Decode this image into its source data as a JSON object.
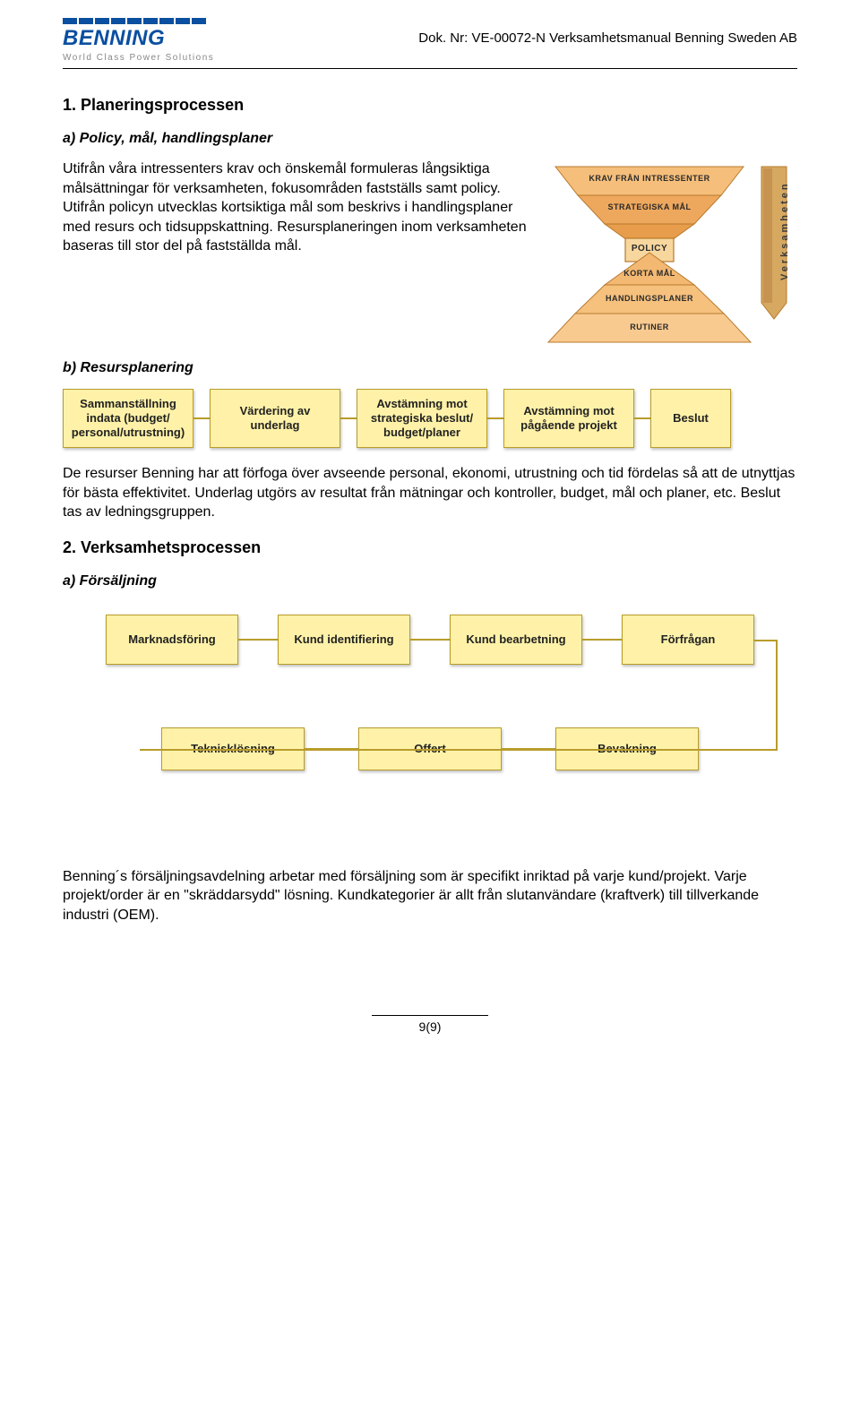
{
  "header": {
    "logo_text": "BENNING",
    "logo_tagline": "World Class Power Solutions",
    "doc_nr": "Dok. Nr: VE-00072-N Verksamhetsmanual Benning Sweden AB"
  },
  "sections": {
    "s1_title": "1. Planeringsprocessen",
    "s1a_title": "a) Policy, mål, handlingsplaner",
    "s1a_text": "Utifrån våra intressenters krav och önskemål formuleras långsiktiga målsättningar för verksamheten, fokusområden fastställs samt policy. Utifrån policyn utvecklas kortsiktiga mål som beskrivs i handlingsplaner med resurs och tidsuppskattning. Resursplaneringen inom verksamheten baseras till stor del på fastställda mål.",
    "s1b_title": "b) Resursplanering",
    "s1b_text": "De resurser Benning har att förfoga över avseende personal, ekonomi, utrustning och tid fördelas så att de utnyttjas för bästa effektivitet. Underlag utgörs av resultat från mätningar och kontroller, budget, mål och planer, etc. Beslut tas av ledningsgruppen.",
    "s2_title": "2. Verksamhetsprocessen",
    "s2a_title": "a) Försäljning",
    "s2a_text": "Benning´s försäljningsavdelning arbetar med försäljning som är specifikt inriktad på varje kund/projekt. Varje projekt/order är en \"skräddarsydd\" lösning. Kundkategorier är allt från slutanvändare (kraftverk) till tillverkande industri (OEM)."
  },
  "policy_diagram": {
    "labels": {
      "l1": "Krav från intressenter",
      "l2": "Strategiska mål",
      "l3": "Policy",
      "l4": "Korta mål",
      "l5": "Handlingsplaner",
      "l6": "Rutiner"
    },
    "side_label": "Verksamheten",
    "colors": {
      "top1": "#f5be7a",
      "top2": "#eea85e",
      "mid": "#f0b060",
      "bot1": "#f3b872",
      "bot2": "#f6c07d",
      "bot3": "#f9ca90",
      "stroke": "#b77a2d",
      "side_fill": "#d6a860",
      "side_fill2": "#c79350"
    }
  },
  "resurs_flow": {
    "boxes": {
      "b1": "Sammanställning indata (budget/ personal/utrustning)",
      "b2": "Värdering av underlag",
      "b3": "Avstämning mot strategiska beslut/ budget/planer",
      "b4": "Avstämning mot pågående projekt",
      "b5": "Beslut"
    },
    "box_bg": "#fff2a8",
    "box_border": "#b89c2a"
  },
  "sales_flow": {
    "row1": {
      "b1": "Marknadsföring",
      "b2": "Kund identifiering",
      "b3": "Kund bearbetning",
      "b4": "Förfrågan"
    },
    "row2": {
      "b1": "Teknisklösning",
      "b2": "Offert",
      "b3": "Bevakning"
    }
  },
  "footer": {
    "page": "9(9)"
  }
}
